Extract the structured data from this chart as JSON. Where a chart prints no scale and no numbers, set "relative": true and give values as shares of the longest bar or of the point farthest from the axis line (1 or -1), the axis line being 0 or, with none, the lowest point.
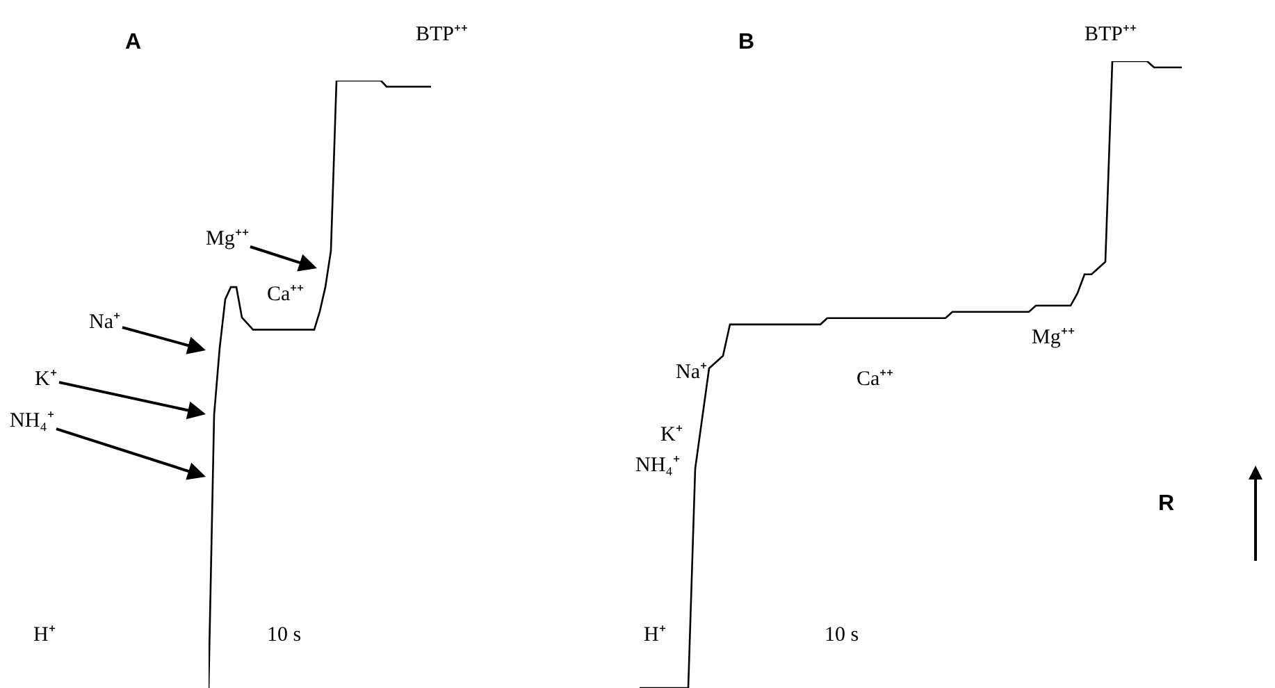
{
  "chart_data": [
    {
      "type": "line",
      "title": "A",
      "relative": true,
      "categories": [
        null,
        null,
        null,
        null,
        null,
        null,
        null,
        null,
        null,
        null,
        null,
        null,
        null,
        null,
        null,
        null,
        null,
        null,
        null,
        null,
        null,
        null,
        null,
        null,
        null,
        null,
        null,
        null,
        null,
        null,
        null,
        null,
        null,
        null,
        null,
        null,
        null,
        null,
        null,
        null,
        null
      ],
      "series": [
        {
          "color": "#000000",
          "values": [
            0,
            0.45,
            0.56,
            0.64,
            0.66,
            0.66,
            0.61,
            0.6,
            0.59,
            0.59,
            0.59,
            0.59,
            0.59,
            0.59,
            0.59,
            0.59,
            0.59,
            0.59,
            0.59,
            0.59,
            0.62,
            0.66,
            0.72,
            1.0,
            1.0,
            1.0,
            1.0,
            1.0,
            1.0,
            1.0,
            1.0,
            1.0,
            0.99,
            0.99,
            0.99,
            0.99,
            0.99,
            0.99,
            0.99,
            0.99,
            0.99
          ]
        }
      ],
      "annotations": [
        "BTP⁺⁺",
        "Mg⁺⁺",
        "Ca⁺⁺",
        "Na⁺",
        "K⁺",
        "NH₄⁺",
        "H⁺",
        "10 s"
      ]
    },
    {
      "type": "line",
      "title": "B",
      "relative": true,
      "categories": [
        null,
        null,
        null,
        null,
        null,
        null,
        null,
        null,
        null,
        null,
        null,
        null,
        null,
        null,
        null,
        null,
        null,
        null,
        null,
        null,
        null,
        null,
        null,
        null,
        null,
        null,
        null,
        null,
        null,
        null,
        null,
        null,
        null,
        null,
        null,
        null,
        null,
        null,
        null,
        null,
        null,
        null,
        null,
        null,
        null,
        null,
        null,
        null,
        null,
        null,
        null,
        null,
        null,
        null,
        null,
        null,
        null,
        null,
        null,
        null,
        null,
        null,
        null,
        null,
        null,
        null,
        null,
        null,
        null,
        null,
        null,
        null,
        null,
        null,
        null,
        null,
        null,
        null,
        null
      ],
      "series": [
        {
          "color": "#000000",
          "values": [
            0,
            0,
            0,
            0,
            0,
            0,
            0,
            0,
            0.35,
            0.43,
            0.51,
            0.52,
            0.53,
            0.58,
            0.58,
            0.58,
            0.58,
            0.58,
            0.58,
            0.58,
            0.58,
            0.58,
            0.58,
            0.58,
            0.58,
            0.58,
            0.58,
            0.59,
            0.59,
            0.59,
            0.59,
            0.59,
            0.59,
            0.59,
            0.59,
            0.59,
            0.59,
            0.59,
            0.59,
            0.59,
            0.59,
            0.59,
            0.59,
            0.59,
            0.59,
            0.6,
            0.6,
            0.6,
            0.6,
            0.6,
            0.6,
            0.6,
            0.6,
            0.6,
            0.6,
            0.6,
            0.6,
            0.61,
            0.61,
            0.61,
            0.61,
            0.61,
            0.61,
            0.63,
            0.66,
            0.66,
            0.67,
            0.68,
            1.0,
            1.0,
            1.0,
            1.0,
            1.0,
            1.0,
            0.99,
            0.99,
            0.99,
            0.99,
            0.99
          ]
        }
      ],
      "annotations": [
        "BTP⁺⁺",
        "Mg⁺⁺",
        "Ca⁺⁺",
        "Na⁺",
        "K⁺",
        "NH₄⁺",
        "H⁺",
        "10 s",
        "R"
      ]
    }
  ]
}
